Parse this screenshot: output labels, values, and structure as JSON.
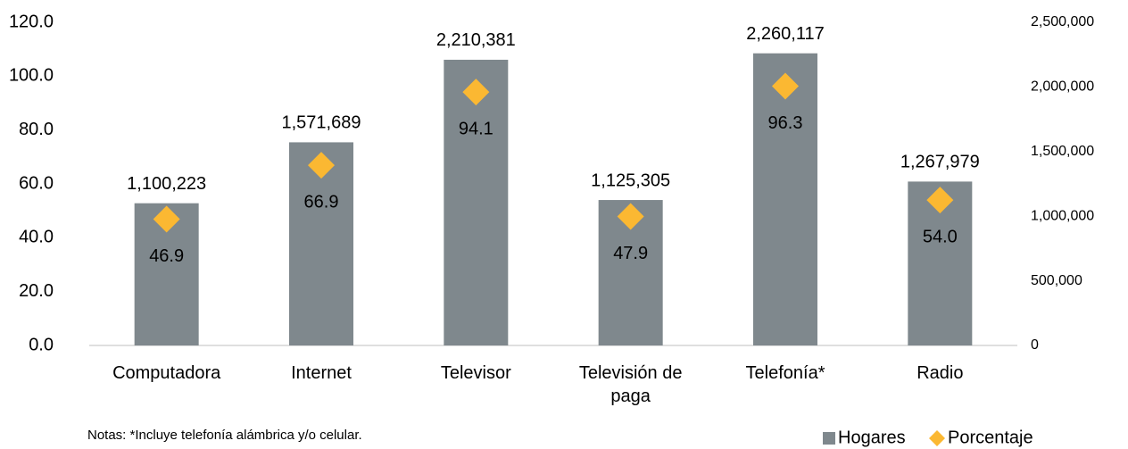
{
  "chart_data": {
    "type": "bar",
    "categories": [
      "Computadora",
      "Internet",
      "Televisor",
      "Televisión de paga",
      "Telefonía*",
      "Radio"
    ],
    "series": [
      {
        "name": "Hogares",
        "color": "#7f888d",
        "axis": "y2",
        "values": [
          1100223,
          1571689,
          2210381,
          1125305,
          2260117,
          1267979
        ],
        "value_labels": [
          "1,100,223",
          "1,571,689",
          "2,210,381",
          "1,125,305",
          "2,260,117",
          "1,267,979"
        ]
      },
      {
        "name": "Porcentaje",
        "color": "#fbb832",
        "type": "scatter",
        "values": [
          46.9,
          66.9,
          94.1,
          47.9,
          96.3,
          54.0
        ],
        "value_labels": [
          "46.9",
          "66.9",
          "94.1",
          "47.9",
          "96.3",
          "54.0"
        ]
      }
    ],
    "ylim": [
      0,
      120
    ],
    "yticks": [
      {
        "value": 0,
        "label": "0.0"
      },
      {
        "value": 20,
        "label": "20.0"
      },
      {
        "value": 40,
        "label": "40.0"
      },
      {
        "value": 60,
        "label": "60.0"
      },
      {
        "value": 80,
        "label": "80.0"
      },
      {
        "value": 100,
        "label": "100.0"
      },
      {
        "value": 120,
        "label": "120.0"
      }
    ],
    "y2lim": [
      0,
      2500000
    ],
    "y2ticks": [
      0,
      {
        "value": 500000,
        "label": "500,000"
      },
      {
        "value": 1000000,
        "label": "1,000,000"
      },
      {
        "value": 1500000,
        "label": "1,500,000"
      },
      {
        "value": 2000000,
        "label": "2,000,000"
      },
      {
        "value": 2500000,
        "label": "2,500,000"
      }
    ],
    "note": "Notas: *Incluye telefonía alámbrica y/o celular.",
    "legend": "bottom-right"
  }
}
